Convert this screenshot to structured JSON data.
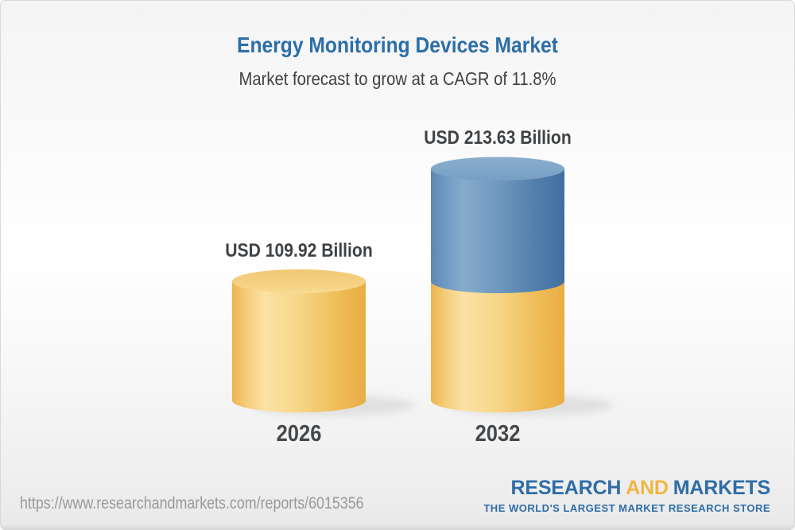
{
  "header": {
    "title": "Energy Monitoring Devices Market",
    "subtitle": "Market forecast to grow at a CAGR of 11.8%"
  },
  "chart_data": {
    "type": "bar",
    "variant": "3d-cylinder",
    "title": "Energy Monitoring Devices Market",
    "subtitle": "Market forecast to grow at a CAGR of 11.8%",
    "categories": [
      "2026",
      "2032"
    ],
    "values": [
      109.92,
      213.63
    ],
    "value_labels": [
      "USD 109.92 Billion",
      "USD 213.63 Billion"
    ],
    "unit": "USD Billion",
    "cagr": "11.8%",
    "xlabel": "",
    "ylabel": "",
    "axes": "none",
    "legend": "none",
    "colors": {
      "base_segment_yellow": "#F5D184",
      "growth_segment_blue": "#5E8BB5",
      "label_text": "#3F4245",
      "title_blue": "#2C6EA8"
    }
  },
  "footer": {
    "source_url": "https://www.researchandmarkets.com/reports/6015356",
    "logo": {
      "word1": "RESEARCH",
      "word2": "AND",
      "word3": "MARKETS",
      "tagline": "THE WORLD'S LARGEST MARKET RESEARCH STORE",
      "blue": "#2F6DA6",
      "gold": "#F0B542"
    }
  }
}
